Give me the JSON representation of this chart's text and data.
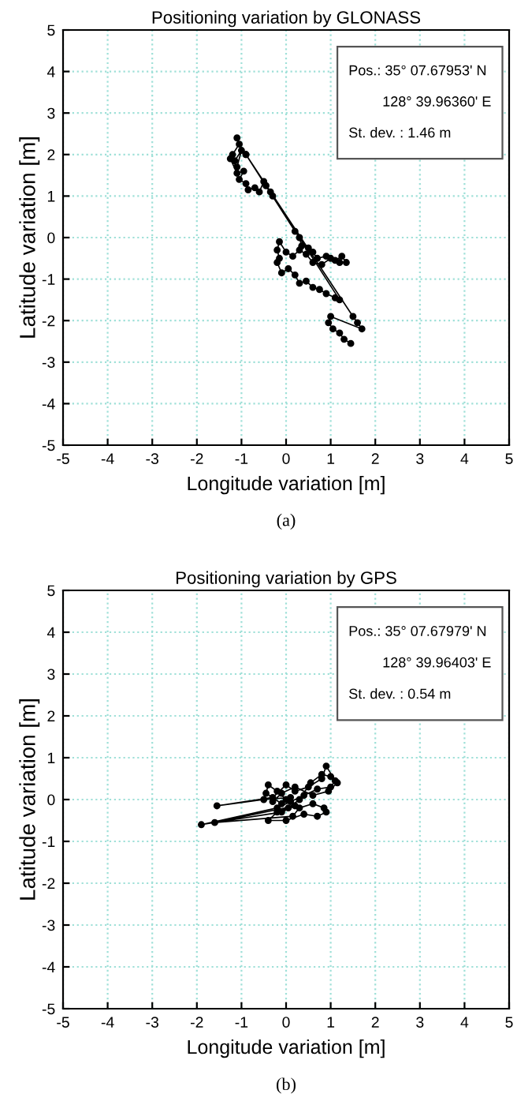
{
  "chart_data": [
    {
      "type": "line",
      "title": "Positioning variation by GLONASS",
      "xlabel": "Longitude variation [m]",
      "ylabel": "Latitude variation [m]",
      "annotations": [
        "Pos.: 35° 07.67953' N",
        "128° 39.96360' E",
        "St. dev. : 1.46 m",
        "(a)"
      ],
      "xlim": [
        -5,
        5
      ],
      "ylim": [
        -5,
        5
      ],
      "xticks": [
        -5,
        -4,
        -3,
        -2,
        -1,
        0,
        1,
        2,
        3,
        4,
        5
      ],
      "yticks": [
        -5,
        -4,
        -3,
        -2,
        -1,
        0,
        1,
        2,
        3,
        4,
        5
      ],
      "grid": true,
      "marker": "circle",
      "line_style": "solid",
      "legend": false,
      "series": [
        {
          "color": "#000000",
          "x": [
            -1.1,
            -1.05,
            -1.2,
            -1.15,
            -1.0,
            -1.1,
            -1.25,
            -1.1,
            -0.95,
            -1.05,
            -0.9,
            -0.85,
            -0.7,
            -0.6,
            -0.5,
            -0.45,
            -0.35,
            -0.3,
            -0.9,
            0.2,
            0.3,
            0.35,
            0.5,
            0.6,
            0.7,
            0.9,
            1.1,
            1.25,
            1.35,
            1.2,
            1.0,
            0.8,
            0.6,
            0.45,
            0.3,
            0.15,
            0.0,
            -0.15,
            -0.2,
            -0.15,
            -0.2,
            -0.1,
            0.05,
            0.2,
            0.3,
            0.45,
            0.6,
            0.75,
            0.9,
            1.1,
            1.2,
            -0.9,
            1.5,
            1.6,
            1.7,
            1.0,
            0.95,
            1.05,
            1.2,
            1.3,
            1.45
          ],
          "values": [
            2.4,
            2.25,
            2.0,
            1.85,
            2.1,
            1.7,
            1.9,
            1.55,
            1.6,
            1.4,
            1.3,
            1.15,
            1.2,
            1.1,
            1.35,
            1.25,
            1.1,
            1.0,
            2.0,
            0.15,
            0.0,
            -0.2,
            -0.25,
            -0.35,
            -0.5,
            -0.45,
            -0.55,
            -0.45,
            -0.6,
            -0.6,
            -0.5,
            -0.65,
            -0.6,
            -0.4,
            -0.3,
            -0.45,
            -0.35,
            -0.1,
            -0.3,
            -0.5,
            -0.6,
            -0.85,
            -0.75,
            -0.9,
            -1.1,
            -1.05,
            -1.2,
            -1.25,
            -1.35,
            -1.45,
            -1.5,
            2.0,
            -1.9,
            -2.05,
            -2.2,
            -1.9,
            -2.05,
            -2.2,
            -2.3,
            -2.45,
            -2.55
          ]
        }
      ]
    },
    {
      "type": "line",
      "title": "Positioning variation by GPS",
      "xlabel": "Longitude variation [m]",
      "ylabel": "Latitude variation [m]",
      "annotations": [
        "Pos.: 35° 07.67979' N",
        "128° 39.96403' E",
        "St. dev. : 0.54 m",
        "(b)"
      ],
      "xlim": [
        -5,
        5
      ],
      "ylim": [
        -5,
        5
      ],
      "xticks": [
        -5,
        -4,
        -3,
        -2,
        -1,
        0,
        1,
        2,
        3,
        4,
        5
      ],
      "yticks": [
        -5,
        -4,
        -3,
        -2,
        -1,
        0,
        1,
        2,
        3,
        4,
        5
      ],
      "grid": true,
      "marker": "circle",
      "line_style": "solid",
      "legend": false,
      "series": [
        {
          "color": "#000000",
          "x": [
            0.0,
            -0.2,
            -0.4,
            -0.45,
            -0.1,
            0.1,
            -0.5,
            -1.55,
            -0.3,
            0.0,
            0.2,
            0.5,
            0.8,
            0.9,
            1.1,
            1.0,
            0.7,
            0.4,
            0.1,
            -0.2,
            -1.9,
            -0.1,
            0.2,
            -1.6,
            0.15,
            0.3,
            0.6,
            0.85,
            0.9,
            0.7,
            0.4,
            0.0,
            -0.4,
            -0.2,
            0.05,
            0.3,
            0.55,
            0.8,
            1.0,
            1.15,
            0.95,
            0.6,
            0.2,
            -0.1,
            -0.3
          ],
          "values": [
            0.0,
            0.2,
            0.35,
            0.15,
            -0.1,
            0.05,
            0.0,
            -0.15,
            0.05,
            0.35,
            0.2,
            0.3,
            0.5,
            0.8,
            0.45,
            0.3,
            0.25,
            0.1,
            -0.05,
            -0.2,
            -0.6,
            -0.3,
            -0.15,
            -0.55,
            -0.4,
            -0.2,
            -0.1,
            -0.2,
            -0.3,
            -0.4,
            -0.35,
            -0.5,
            -0.5,
            -0.3,
            -0.2,
            0.0,
            0.4,
            0.6,
            0.55,
            0.4,
            0.2,
            0.1,
            0.3,
            0.15,
            -0.05
          ]
        }
      ]
    }
  ]
}
